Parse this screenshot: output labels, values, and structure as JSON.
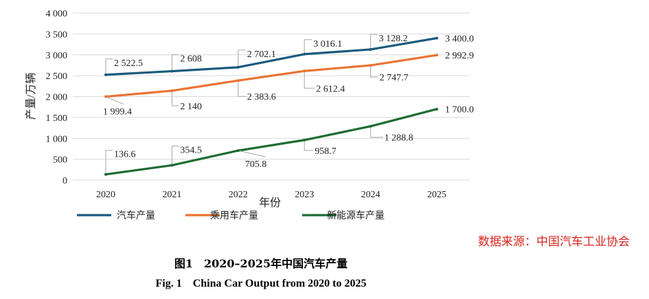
{
  "chart_data": {
    "type": "line",
    "categories": [
      "2020",
      "2021",
      "2022",
      "2023",
      "2024",
      "2025"
    ],
    "xlabel": "年份",
    "ylabel": "产量/万辆",
    "ylim": [
      0,
      4000
    ],
    "yticks": [
      0,
      500,
      1000,
      1500,
      2000,
      2500,
      3000,
      3500,
      4000
    ],
    "ytick_labels": [
      "0",
      "500",
      "1 000",
      "1 500",
      "2 000",
      "2 500",
      "3 000",
      "3 500",
      "4 000"
    ],
    "grid": true,
    "legend_position": "bottom",
    "series": [
      {
        "name": "汽车产量",
        "color": "#1b5a7e",
        "values": [
          2522.5,
          2608,
          2702.1,
          3016.1,
          3128.2,
          3400.0
        ],
        "labels": [
          "2 522.5",
          "2 608",
          "2 702.1",
          "3 016.1",
          "3 128.2",
          "3 400.0"
        ]
      },
      {
        "name": "乘用车产量",
        "color": "#ea7332",
        "values": [
          1999.4,
          2140,
          2383.6,
          2612.4,
          2747.7,
          2992.9
        ],
        "labels": [
          "1 999.4",
          "2 140",
          "2 383.6",
          "2 612.4",
          "2 747.7",
          "2 992.9"
        ]
      },
      {
        "name": "新能源车产量",
        "color": "#1e6b33",
        "values": [
          136.6,
          354.5,
          705.8,
          958.7,
          1288.8,
          1700.0
        ],
        "labels": [
          "136.6",
          "354.5",
          "705.8",
          "958.7",
          "1 288.8",
          "1 700.0"
        ]
      }
    ]
  },
  "source": "数据来源：中国汽车工业协会",
  "caption_cn": "图1　2020–2025年中国汽车产量",
  "caption_en": "Fig. 1　China Car Output from 2020 to 2025"
}
